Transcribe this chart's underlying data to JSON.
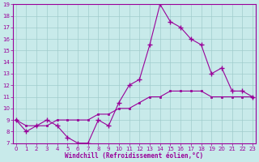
{
  "xlabel": "Windchill (Refroidissement éolien,°C)",
  "hours": [
    0,
    1,
    2,
    3,
    4,
    5,
    6,
    7,
    8,
    9,
    10,
    11,
    12,
    13,
    14,
    15,
    16,
    17,
    18,
    19,
    20,
    21,
    22,
    23
  ],
  "windchill": [
    9,
    8,
    8.5,
    9,
    8.5,
    7.5,
    7,
    7,
    9,
    8.5,
    10.5,
    12,
    12.5,
    15.5,
    19,
    17.5,
    17,
    16,
    15.5,
    13,
    13.5,
    11.5,
    11.5,
    11
  ],
  "temperature": [
    9,
    8.5,
    8.5,
    8.5,
    9,
    9,
    9,
    9,
    9.5,
    9.5,
    10,
    10,
    10.5,
    11,
    11,
    11.5,
    11.5,
    11.5,
    11.5,
    11,
    11,
    11,
    11,
    11
  ],
  "line_color": "#990099",
  "bg_color": "#c8eaea",
  "grid_color": "#a0cccc",
  "ylim_min": 7,
  "ylim_max": 19,
  "xlim_min": 0,
  "xlim_max": 23,
  "yticks": [
    7,
    8,
    9,
    10,
    11,
    12,
    13,
    14,
    15,
    16,
    17,
    18,
    19
  ],
  "xticks": [
    0,
    1,
    2,
    3,
    4,
    5,
    6,
    7,
    8,
    9,
    10,
    11,
    12,
    13,
    14,
    15,
    16,
    17,
    18,
    19,
    20,
    21,
    22,
    23
  ],
  "tick_fontsize": 5,
  "xlabel_fontsize": 5.5
}
